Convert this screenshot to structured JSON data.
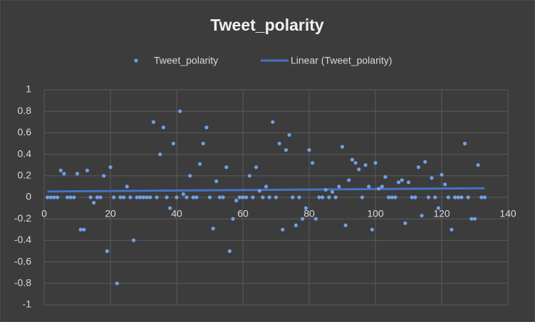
{
  "chart_data": {
    "type": "scatter",
    "title": "Tweet_polarity",
    "x": [
      1,
      2,
      3,
      4,
      5,
      6,
      7,
      8,
      9,
      10,
      11,
      12,
      13,
      14,
      15,
      16,
      17,
      18,
      19,
      20,
      21,
      22,
      23,
      24,
      25,
      26,
      27,
      28,
      29,
      30,
      31,
      32,
      33,
      34,
      35,
      36,
      37,
      38,
      39,
      40,
      41,
      42,
      43,
      44,
      45,
      46,
      47,
      48,
      49,
      50,
      51,
      52,
      53,
      54,
      55,
      56,
      57,
      58,
      59,
      60,
      61,
      62,
      63,
      64,
      65,
      66,
      67,
      68,
      69,
      70,
      71,
      72,
      73,
      74,
      75,
      76,
      77,
      78,
      79,
      80,
      81,
      82,
      83,
      84,
      85,
      86,
      87,
      88,
      89,
      90,
      91,
      92,
      93,
      94,
      95,
      96,
      97,
      98,
      99,
      100,
      101,
      102,
      103,
      104,
      105,
      106,
      107,
      108,
      109,
      110,
      111,
      112,
      113,
      114,
      115,
      116,
      117,
      118,
      119,
      120,
      121,
      122,
      123,
      124,
      125,
      126,
      127,
      128,
      129,
      130,
      131,
      132,
      133
    ],
    "series": [
      {
        "name": "Tweet_polarity",
        "color": "#6fa0e6",
        "values": [
          0,
          0,
          0,
          0,
          0.25,
          0.22,
          0,
          0,
          0,
          0.22,
          -0.3,
          -0.3,
          0.25,
          0,
          -0.05,
          0,
          0,
          0.2,
          -0.5,
          0.28,
          0,
          -0.8,
          0,
          0,
          0.1,
          0,
          -0.4,
          0,
          0,
          0,
          0,
          0,
          0.7,
          0,
          0.4,
          0.65,
          0,
          -0.1,
          0.5,
          0,
          0.8,
          0.03,
          0,
          0.2,
          0,
          0,
          0.31,
          0.5,
          0.65,
          0,
          -0.29,
          0.15,
          0,
          0,
          0.28,
          -0.5,
          -0.2,
          -0.03,
          0,
          0,
          0,
          0.2,
          0,
          0.28,
          0.06,
          0,
          0.1,
          0,
          0.7,
          0,
          0.5,
          -0.3,
          0.44,
          0.58,
          0,
          -0.26,
          0,
          -0.2,
          -0.1,
          0.44,
          0.32,
          -0.2,
          0,
          0,
          0.07,
          0,
          0.05,
          0,
          0.1,
          0.47,
          -0.26,
          0.16,
          0.35,
          0.32,
          0.26,
          0,
          0.3,
          0.1,
          -0.3,
          0.32,
          0.08,
          0.1,
          0.19,
          0,
          0,
          0,
          0.14,
          0.16,
          -0.24,
          0.14,
          0,
          0,
          0.28,
          -0.17,
          0.33,
          0,
          0.18,
          0,
          -0.1,
          0.21,
          0.12,
          0,
          -0.3,
          0,
          0,
          0,
          0.5,
          0,
          -0.2,
          -0.2,
          0.3,
          0,
          0
        ]
      }
    ],
    "trendline": {
      "name": "Linear (Tweet_polarity)",
      "color": "#4472c4"
    },
    "xlim": [
      0,
      140
    ],
    "xticks": [
      0,
      20,
      40,
      60,
      80,
      100,
      120,
      140
    ],
    "ylim": [
      -1,
      1
    ],
    "yticks": [
      -1,
      -0.8,
      -0.6,
      -0.4,
      -0.2,
      0,
      0.2,
      0.4,
      0.6,
      0.8,
      1
    ],
    "grid": true,
    "legend": "top"
  }
}
